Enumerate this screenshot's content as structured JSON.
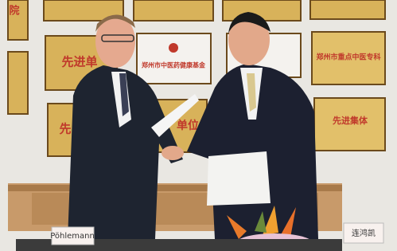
{
  "plaques": [
    {
      "text": "院"
    },
    {
      "text": "先进单"
    },
    {
      "text": "郑州市中医药健康基金"
    },
    {
      "text": "郑州市重点中医专科"
    },
    {
      "text": "先"
    },
    {
      "text": "单位"
    },
    {
      "text": "先进集体"
    }
  ],
  "nameplates": [
    {
      "text": "Pöhlemann"
    },
    {
      "text": "连鸿凯"
    }
  ]
}
